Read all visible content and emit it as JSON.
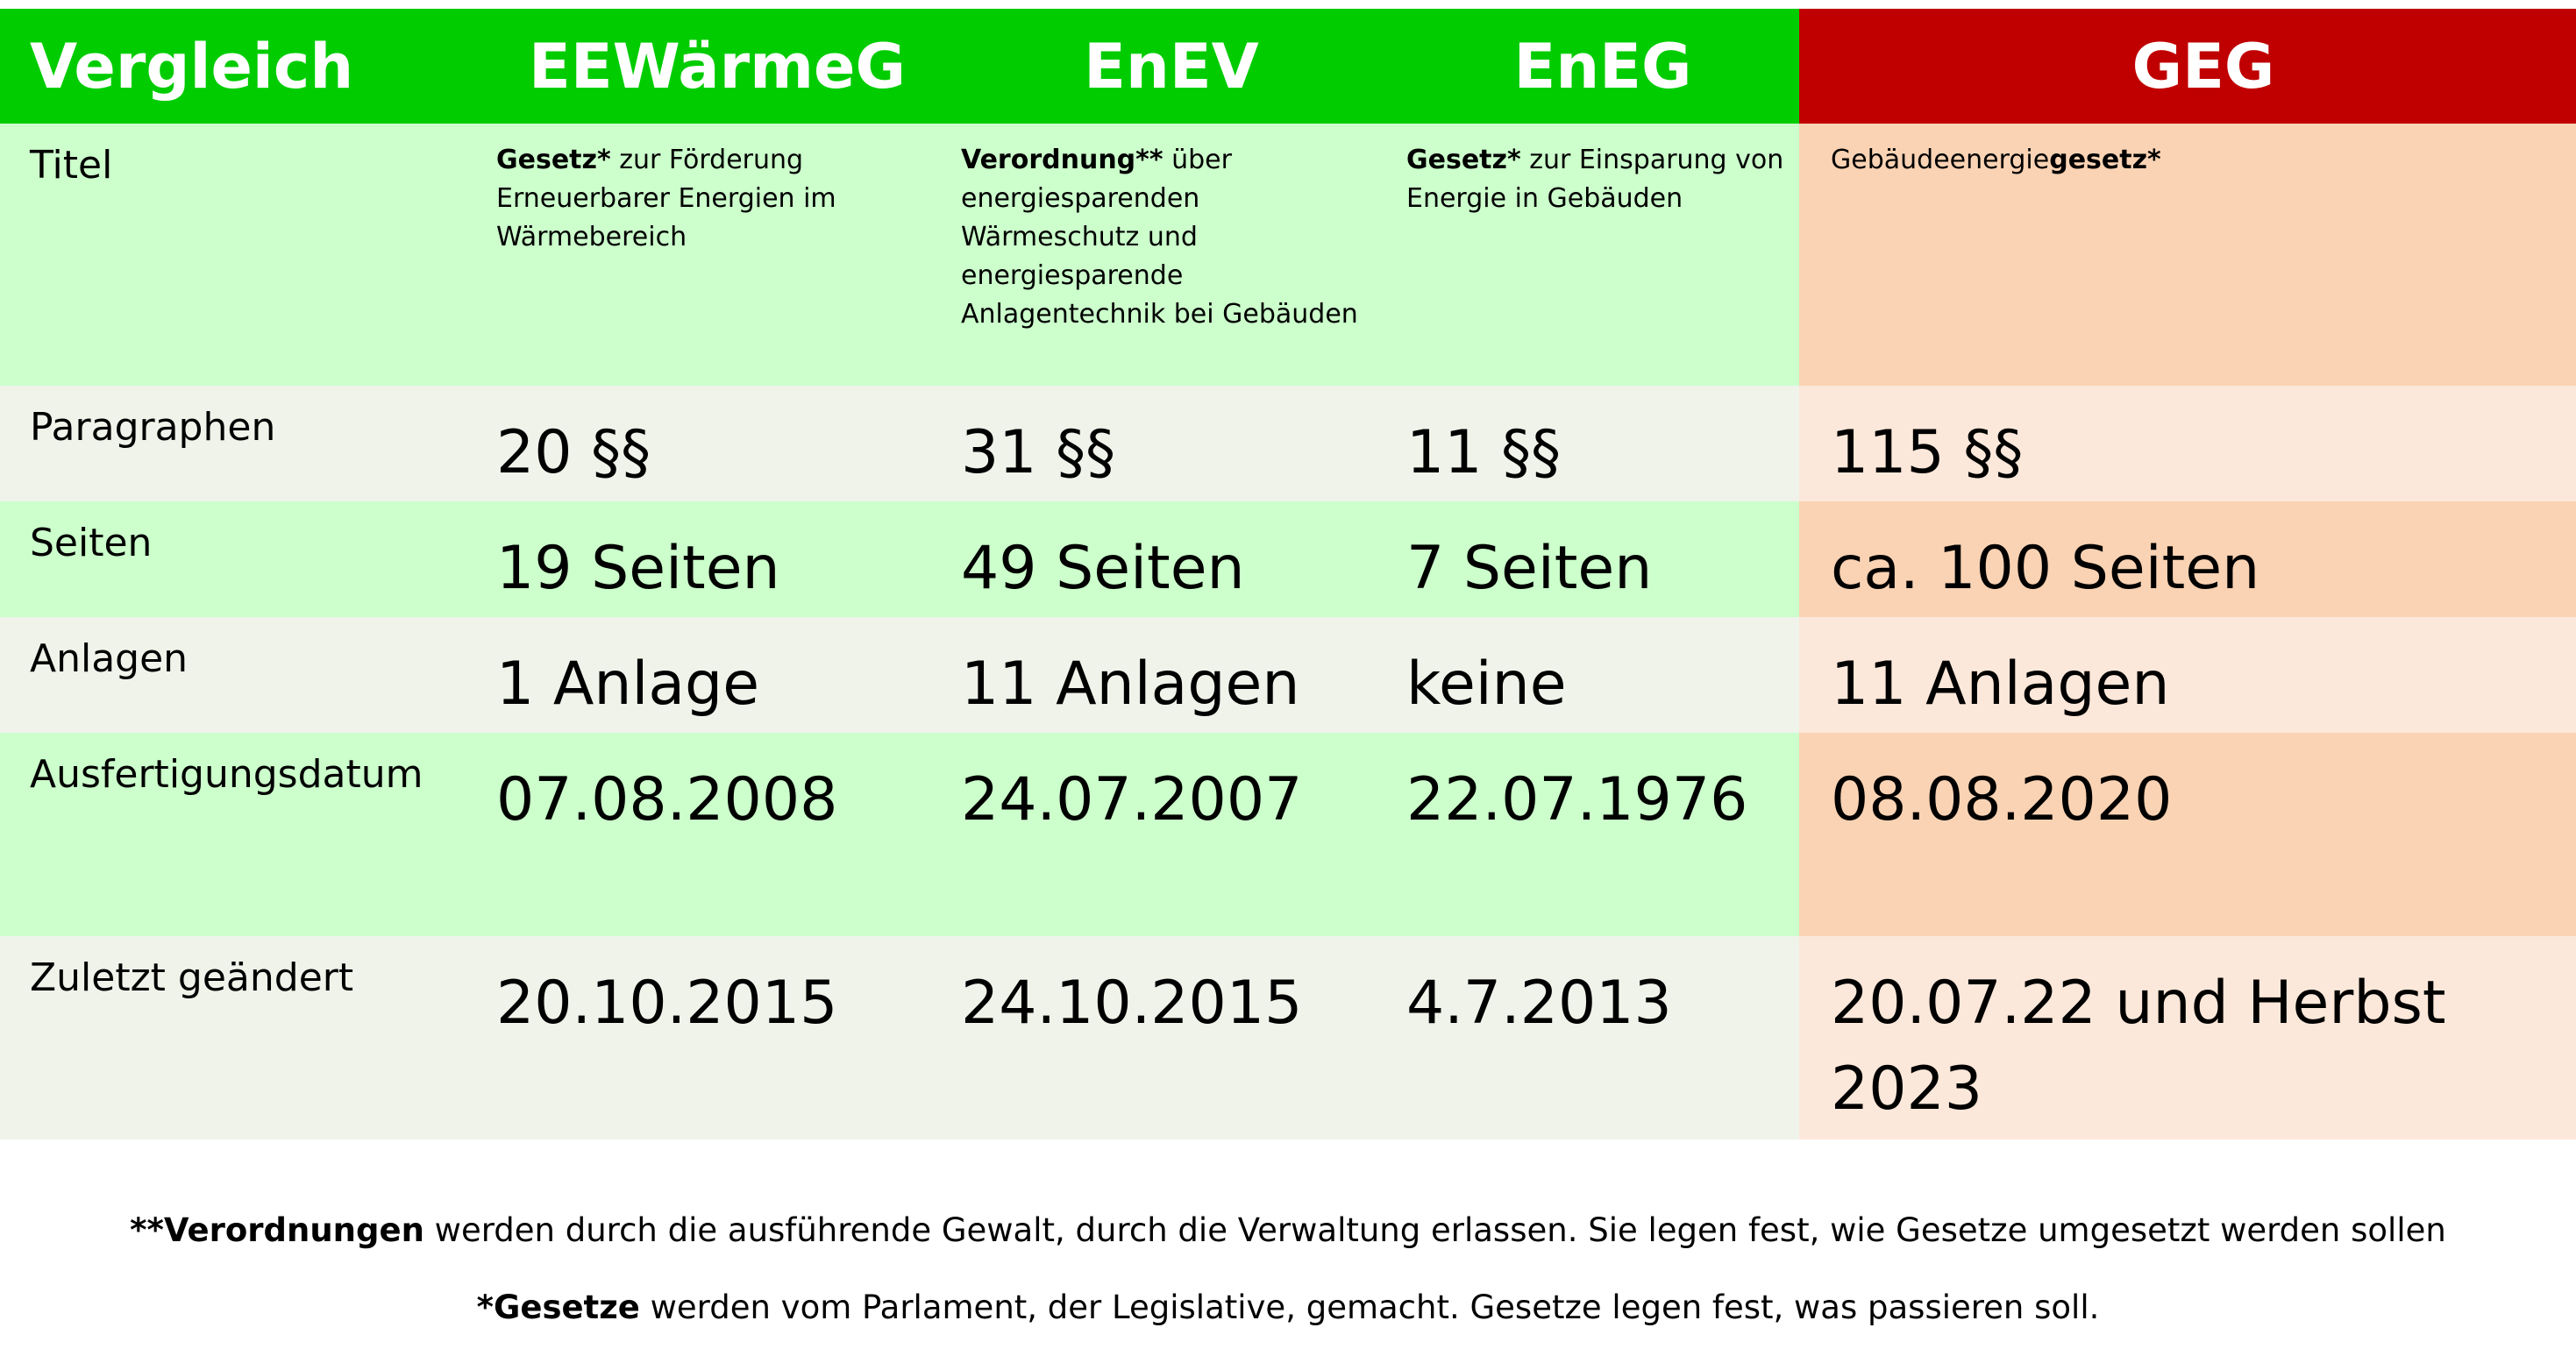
{
  "header": {
    "col0": "Vergleich",
    "col1": "EEWärmeG",
    "col2": "EnEV",
    "col3": "EnEG",
    "col4": "GEG"
  },
  "colors": {
    "header_green": "#00cc00",
    "header_red": "#c00000",
    "row_green": "#ccffcc",
    "row_grey": "#eff3ea",
    "row_orange": "#fad3b4",
    "row_peach": "#fce8da"
  },
  "titel": {
    "label": "Titel",
    "eewaermeg": {
      "bold": "Gesetz*",
      "text": " zur Förderung Erneuerbarer Energien im Wärmebereich"
    },
    "enev": {
      "bold": "Verordnung**",
      "text": " über energiesparenden Wärmeschutz und energiesparende Anlagentechnik bei Gebäuden"
    },
    "eneg": {
      "bold": "Gesetz*",
      "text": " zur Einsparung von Energie in Gebäuden"
    },
    "geg": {
      "text": "Gebäudeenergie",
      "bold": "gesetz*"
    }
  },
  "rows": [
    {
      "label": "Paragraphen",
      "values": [
        "20 §§",
        "31 §§",
        "11 §§",
        "115 §§"
      ]
    },
    {
      "label": "Seiten",
      "values": [
        "19 Seiten",
        "49 Seiten",
        "7 Seiten",
        "ca. 100 Seiten"
      ]
    },
    {
      "label": "Anlagen",
      "values": [
        "1 Anlage",
        "11 Anlagen",
        "keine",
        "11 Anlagen"
      ]
    },
    {
      "label": "Ausfertigungsdatum",
      "values": [
        "07.08.2008",
        "24.07.2007",
        "22.07.1976",
        "08.08.2020"
      ]
    },
    {
      "label": "Zuletzt geändert",
      "values": [
        "20.10.2015",
        "24.10.2015",
        "4.7.2013",
        "20.07.22 und Herbst 2023"
      ]
    }
  ],
  "footer": {
    "line1_bold": "**Verordnungen",
    "line1_text": " werden durch die ausführende Gewalt, durch die Verwaltung erlassen. Sie legen fest, wie Gesetze umgesetzt werden sollen",
    "line2_bold": "*Gesetze",
    "line2_text": " werden vom Parlament, der Legislative, gemacht. Gesetze legen fest, was passieren soll."
  }
}
